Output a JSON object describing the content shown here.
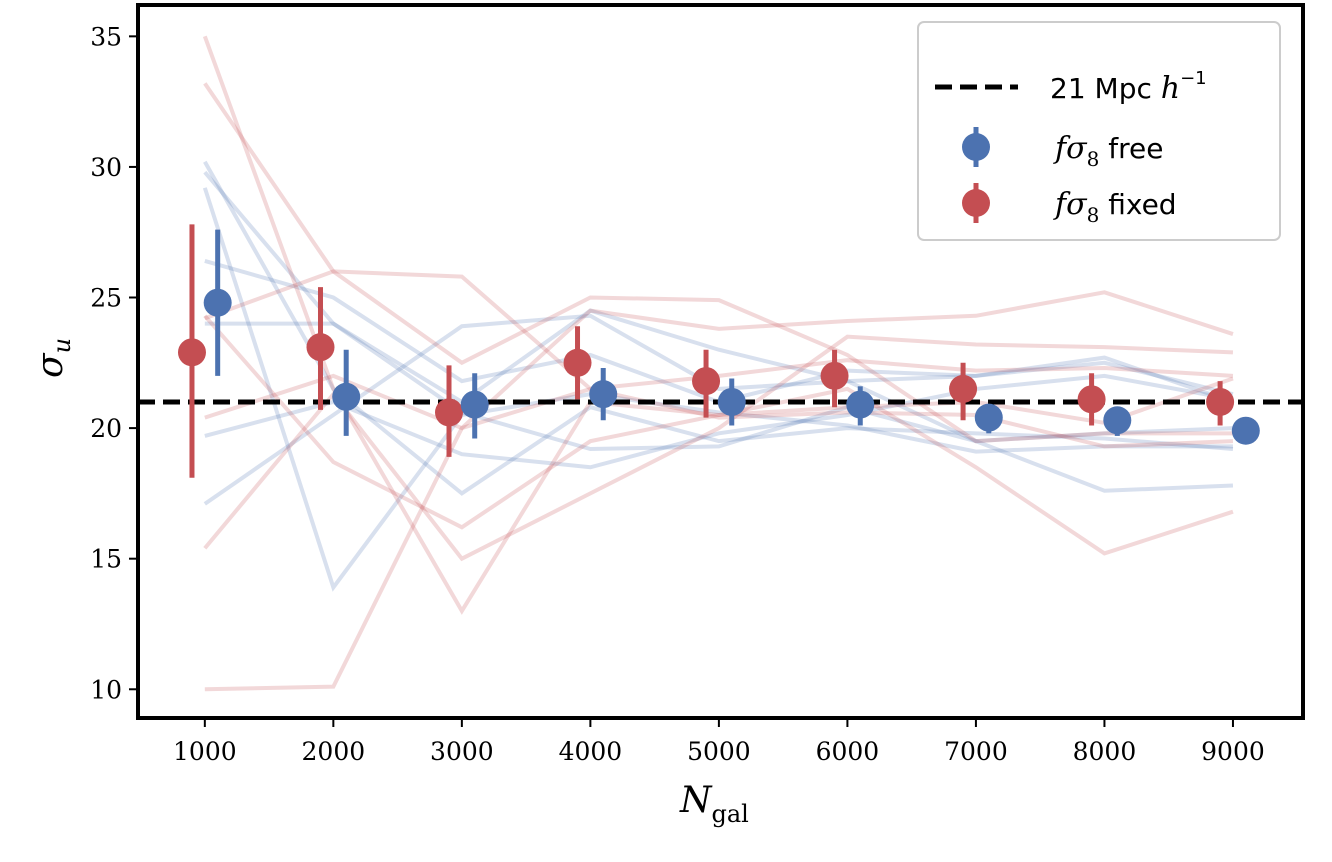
{
  "chart_data": {
    "type": "scatter",
    "title": "",
    "xlabel": "N",
    "xlabel_sub": "gal",
    "ylabel": "σ",
    "ylabel_sub": "u",
    "xlim": [
      480,
      9545
    ],
    "ylim": [
      8.9,
      36.2
    ],
    "xticks": [
      1000,
      2000,
      3000,
      4000,
      5000,
      6000,
      7000,
      8000,
      9000
    ],
    "yticks": [
      10,
      15,
      20,
      25,
      30,
      35
    ],
    "grid": false,
    "legend_position": "top-right",
    "reference_line": {
      "y": 21,
      "label_main": "21 Mpc ",
      "label_h": "h",
      "label_exp": "−1",
      "style": "dashed",
      "color": "#000000"
    },
    "series": [
      {
        "name": "fσ8 free",
        "label_f": "fσ",
        "label_sub": "8",
        "label_rest": " free",
        "color": "#4C72B0",
        "x": [
          1100,
          2100,
          3100,
          4100,
          5100,
          6100,
          7100,
          8100,
          9100
        ],
        "y": [
          24.8,
          21.2,
          20.9,
          21.3,
          21.0,
          20.9,
          20.4,
          20.3,
          19.9
        ],
        "yerr_upper": [
          27.6,
          23.0,
          22.1,
          22.3,
          21.9,
          21.6,
          20.9,
          20.7,
          20.4
        ],
        "yerr_lower": [
          22.0,
          19.7,
          19.6,
          20.3,
          20.1,
          20.1,
          19.8,
          19.7,
          19.4
        ]
      },
      {
        "name": "fσ8 fixed",
        "label_f": "fσ",
        "label_sub": "8",
        "label_rest": " fixed",
        "color": "#C44E52",
        "x": [
          900,
          1900,
          2900,
          3900,
          4900,
          5900,
          6900,
          7900,
          8900
        ],
        "y": [
          22.9,
          23.1,
          20.6,
          22.5,
          21.8,
          22.0,
          21.5,
          21.1,
          21.0
        ],
        "yerr_upper": [
          27.8,
          25.4,
          22.4,
          23.9,
          23.0,
          23.0,
          22.5,
          22.1,
          21.8
        ],
        "yerr_lower": [
          18.1,
          20.7,
          18.9,
          21.1,
          20.4,
          20.8,
          20.3,
          20.1,
          20.1
        ]
      }
    ],
    "realizations": {
      "x": [
        1000,
        2000,
        3000,
        4000,
        5000,
        6000,
        7000,
        8000,
        9000
      ],
      "free": [
        [
          30.2,
          21.5,
          17.5,
          20.8,
          19.5,
          20.0,
          19.8,
          19.6,
          19.2
        ],
        [
          29.8,
          24.0,
          21.0,
          24.5,
          23.0,
          21.8,
          22.0,
          22.7,
          21.0
        ],
        [
          29.2,
          13.9,
          20.5,
          21.3,
          20.6,
          20.1,
          19.1,
          19.3,
          19.3
        ],
        [
          26.4,
          25.0,
          21.8,
          22.8,
          21.0,
          22.2,
          22.0,
          22.5,
          21.3
        ],
        [
          24.0,
          24.0,
          20.6,
          19.2,
          19.3,
          20.8,
          19.5,
          17.6,
          17.8
        ],
        [
          17.1,
          20.5,
          23.9,
          24.3,
          21.5,
          21.8,
          19.5,
          19.8,
          20.0
        ],
        [
          19.7,
          21.0,
          19.0,
          18.5,
          19.8,
          20.5,
          21.5,
          22.0,
          21.1
        ]
      ],
      "fixed": [
        [
          35.0,
          21.5,
          13.0,
          21.0,
          20.5,
          21.5,
          18.5,
          15.2,
          16.8
        ],
        [
          33.2,
          26.0,
          22.5,
          25.0,
          24.9,
          22.8,
          19.5,
          19.8,
          19.8
        ],
        [
          24.2,
          26.0,
          25.8,
          21.5,
          20.4,
          20.6,
          20.5,
          19.3,
          19.5
        ],
        [
          20.4,
          22.0,
          20.0,
          24.5,
          23.8,
          24.1,
          24.3,
          25.2,
          23.6
        ],
        [
          15.4,
          21.3,
          15.0,
          17.5,
          20.0,
          23.5,
          23.2,
          23.1,
          22.9
        ],
        [
          10.0,
          10.1,
          20.0,
          21.5,
          22.0,
          22.6,
          22.2,
          22.3,
          22.0
        ],
        [
          24.3,
          18.7,
          16.2,
          19.5,
          20.5,
          20.8,
          21.0,
          20.2,
          21.9
        ]
      ]
    }
  }
}
